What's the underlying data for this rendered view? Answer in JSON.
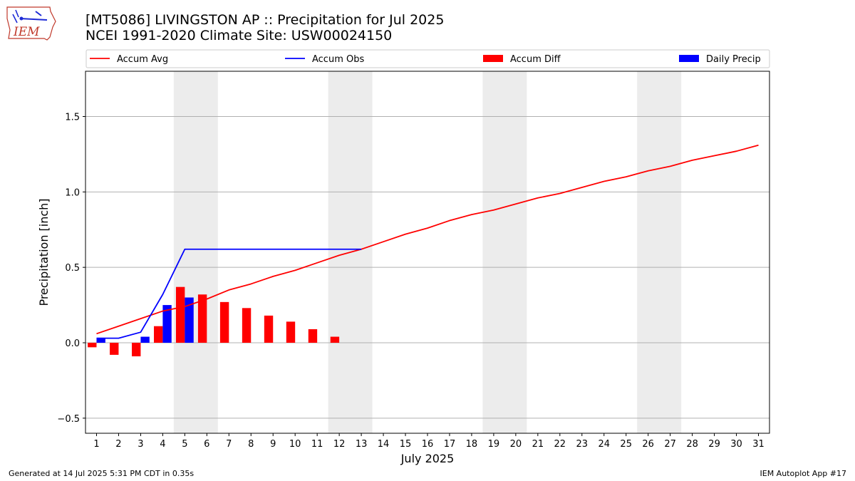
{
  "header": {
    "title_line1": "[MT5086] LIVINGSTON AP :: Precipitation for Jul 2025",
    "title_line2": "NCEI 1991-2020 Climate Site: USW00024150"
  },
  "logo": {
    "text": "IEM",
    "icon": "iowa-state-outline-logo"
  },
  "footer": {
    "left": "Generated at 14 Jul 2025 5:31 PM CDT in 0.35s",
    "right": "IEM Autoplot App #17"
  },
  "colors": {
    "avg": "#ff0000",
    "obs": "#0000ff",
    "diff": "#ff0000",
    "daily": "#0000ff",
    "weekend": "#ececec",
    "grid": "#b0b0b0"
  },
  "chart_data": {
    "type": "bar",
    "xlabel": "July 2025",
    "ylabel": "Precipitation [inch]",
    "ylim": [
      -0.6,
      1.8
    ],
    "xlim": [
      0.5,
      31.5
    ],
    "yticks": [
      -0.5,
      0.0,
      0.5,
      1.0,
      1.5
    ],
    "ytick_labels": [
      "−0.5",
      "0.0",
      "0.5",
      "1.0",
      "1.5"
    ],
    "x": [
      1,
      2,
      3,
      4,
      5,
      6,
      7,
      8,
      9,
      10,
      11,
      12,
      13,
      14,
      15,
      16,
      17,
      18,
      19,
      20,
      21,
      22,
      23,
      24,
      25,
      26,
      27,
      28,
      29,
      30,
      31
    ],
    "weekend_days": [
      5,
      6,
      12,
      13,
      19,
      20,
      26,
      27
    ],
    "grid": true,
    "legend_position": "top",
    "legend": [
      "Accum Avg",
      "Accum Obs",
      "Accum Diff",
      "Daily Precip"
    ],
    "series": [
      {
        "name": "Accum Avg",
        "kind": "line",
        "color": "#ff0000",
        "x": [
          1,
          2,
          3,
          4,
          5,
          6,
          7,
          8,
          9,
          10,
          11,
          12,
          13,
          14,
          15,
          16,
          17,
          18,
          19,
          20,
          21,
          22,
          23,
          24,
          25,
          26,
          27,
          28,
          29,
          30,
          31
        ],
        "values": [
          0.06,
          0.11,
          0.16,
          0.21,
          0.24,
          0.29,
          0.35,
          0.39,
          0.44,
          0.48,
          0.53,
          0.58,
          0.62,
          0.67,
          0.72,
          0.76,
          0.81,
          0.85,
          0.88,
          0.92,
          0.96,
          0.99,
          1.03,
          1.07,
          1.1,
          1.14,
          1.17,
          1.21,
          1.24,
          1.27,
          1.31
        ]
      },
      {
        "name": "Accum Obs",
        "kind": "line",
        "color": "#0000ff",
        "x": [
          1,
          2,
          3,
          4,
          5,
          6,
          7,
          8,
          9,
          10,
          11,
          12,
          13
        ],
        "values": [
          0.03,
          0.03,
          0.07,
          0.32,
          0.62,
          0.62,
          0.62,
          0.62,
          0.62,
          0.62,
          0.62,
          0.62,
          0.62
        ]
      },
      {
        "name": "Accum Diff",
        "kind": "bar",
        "color": "#ff0000",
        "x": [
          1,
          2,
          3,
          4,
          5,
          6,
          7,
          8,
          9,
          10,
          11,
          12
        ],
        "values": [
          -0.03,
          -0.08,
          -0.09,
          0.11,
          0.37,
          0.32,
          0.27,
          0.23,
          0.18,
          0.14,
          0.09,
          0.04
        ]
      },
      {
        "name": "Daily Precip",
        "kind": "bar",
        "color": "#0000ff",
        "x": [
          1,
          3,
          4,
          5
        ],
        "values": [
          0.03,
          0.04,
          0.25,
          0.3
        ]
      }
    ]
  }
}
